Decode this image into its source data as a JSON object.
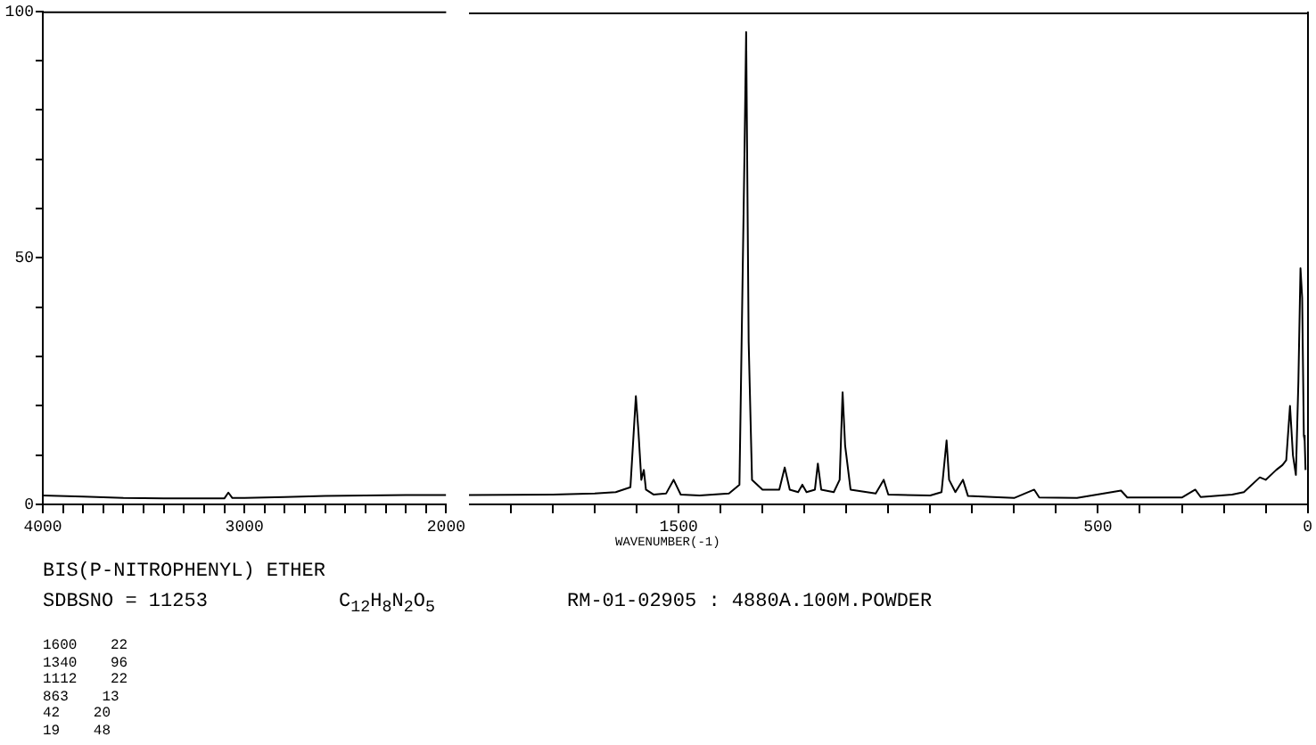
{
  "chart_data": [
    {
      "type": "line",
      "title": "BIS(P-NITROPHENYL) ETHER",
      "annotations": [
        "SDBSNO = 11253",
        "C$_{12}$H$_{8}$N$_{2}$O$_{5}$",
        "RM-01-02905 : 4880A.100M.POWDER",
        "1600 22",
        "1340 96",
        "1112 22",
        "863 13",
        "42 20",
        "19 48"
      ],
      "xlim": [
        4000,
        2000
      ],
      "xticks": [
        4000,
        {
          "value": 3900,
          "label": null
        },
        {
          "value": 3800,
          "label": null
        },
        {
          "value": 3700,
          "label": null
        },
        {
          "value": 3600,
          "label": null
        },
        {
          "value": 3500,
          "label": null
        },
        {
          "value": 3400,
          "label": null
        },
        {
          "value": 3300,
          "label": null
        },
        {
          "value": 3200,
          "label": null
        },
        {
          "value": 3100,
          "label": null
        },
        3000,
        {
          "value": 2900,
          "label": null
        },
        {
          "value": 2800,
          "label": null
        },
        {
          "value": 2700,
          "label": null
        },
        {
          "value": 2600,
          "label": null
        },
        {
          "value": 2500,
          "label": null
        },
        {
          "value": 2400,
          "label": null
        },
        {
          "value": 2300,
          "label": null
        },
        {
          "value": 2200,
          "label": null
        },
        {
          "value": 2100,
          "label": null
        },
        2000
      ],
      "ylim": [
        0,
        100
      ],
      "yticks": [
        0,
        {
          "value": 10,
          "label": null
        },
        {
          "value": 20,
          "label": null
        },
        {
          "value": 30,
          "label": null
        },
        {
          "value": 40,
          "label": null
        },
        50,
        {
          "value": 60,
          "label": null
        },
        {
          "value": 70,
          "label": null
        },
        {
          "value": 80,
          "label": null
        },
        {
          "value": 90,
          "label": null
        },
        100
      ],
      "grid": false,
      "legend": false,
      "marker": "none",
      "line_style": "solid",
      "series": [
        {
          "color": "#000000",
          "x": [
            4000,
            3800,
            3600,
            3400,
            3200,
            3100,
            3080,
            3060,
            3000,
            2800,
            2600,
            2400,
            2200,
            2000
          ],
          "values": [
            1.8,
            1.6,
            1.3,
            1.2,
            1.2,
            1.2,
            2.4,
            1.3,
            1.3,
            1.5,
            1.7,
            1.8,
            1.9,
            1.9
          ]
        }
      ]
    },
    {
      "type": "line",
      "xlabel": "WAVENUMBER(-1)",
      "tick_labels": "x",
      "xlim": [
        2000,
        0
      ],
      "xticks": [
        {
          "value": 1900,
          "label": null
        },
        {
          "value": 1800,
          "label": null
        },
        {
          "value": 1700,
          "label": null
        },
        {
          "value": 1600,
          "label": null
        },
        1500,
        {
          "value": 1400,
          "label": null
        },
        {
          "value": 1300,
          "label": null
        },
        {
          "value": 1200,
          "label": null
        },
        {
          "value": 1100,
          "label": null
        },
        {
          "value": 1000,
          "label": null
        },
        {
          "value": 900,
          "label": null
        },
        {
          "value": 800,
          "label": null
        },
        {
          "value": 700,
          "label": null
        },
        {
          "value": 600,
          "label": null
        },
        500,
        {
          "value": 400,
          "label": null
        },
        {
          "value": 300,
          "label": null
        },
        {
          "value": 200,
          "label": null
        },
        {
          "value": 100,
          "label": null
        },
        0
      ],
      "ylim": [
        0,
        100
      ],
      "yticks": [
        {
          "value": 0,
          "label": null
        },
        {
          "value": 100,
          "label": null
        }
      ],
      "grid": false,
      "legend": false,
      "marker": "none",
      "line_style": "solid",
      "series": [
        {
          "color": "#000000",
          "x": [
            2000,
            1800,
            1700,
            1650,
            1615,
            1602,
            1596,
            1589,
            1583,
            1578,
            1560,
            1530,
            1512,
            1495,
            1450,
            1380,
            1355,
            1343,
            1339,
            1333,
            1325,
            1300,
            1260,
            1247,
            1235,
            1215,
            1205,
            1195,
            1175,
            1168,
            1160,
            1130,
            1116,
            1109,
            1103,
            1090,
            1030,
            1011,
            1000,
            900,
            873,
            861,
            855,
            840,
            822,
            810,
            750,
            700,
            652,
            640,
            550,
            445,
            430,
            300,
            268,
            255,
            180,
            152,
            114,
            100,
            75,
            60,
            51,
            42,
            35,
            28,
            22,
            17,
            13,
            9,
            7,
            5
          ],
          "values": [
            1.9,
            2,
            2.2,
            2.5,
            3.5,
            22,
            15,
            5,
            7,
            3,
            2,
            2.2,
            5,
            2,
            1.8,
            2.2,
            4,
            71,
            96,
            33,
            5,
            3,
            3,
            7.5,
            3,
            2.5,
            4,
            2.5,
            3,
            8.3,
            3,
            2.5,
            5,
            22.8,
            12,
            3,
            2.2,
            5,
            2,
            1.8,
            2.5,
            13,
            5,
            2.5,
            5,
            1.7,
            1.5,
            1.3,
            3,
            1.4,
            1.3,
            2.8,
            1.4,
            1.4,
            3,
            1.5,
            2,
            2.5,
            5.5,
            5,
            7,
            8,
            9,
            20,
            10,
            6,
            25,
            48,
            42,
            14,
            13,
            7
          ]
        }
      ]
    }
  ]
}
